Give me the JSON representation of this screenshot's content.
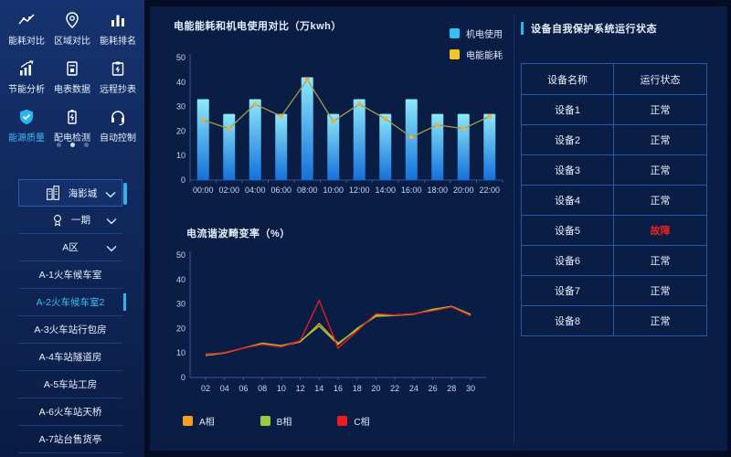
{
  "colors": {
    "accent_cyan": "#2ab5f0",
    "fault_red": "#e8231d",
    "bar_top": "#8de9fa",
    "bar_bottom": "#1470da",
    "axis_line": "#31549b",
    "axis_text": "#c6d8f2"
  },
  "sidebar": {
    "menu": [
      {
        "label": "能耗对比",
        "icon": "trend-icon",
        "active": false
      },
      {
        "label": "区域对比",
        "icon": "location-icon",
        "active": false
      },
      {
        "label": "能耗排名",
        "icon": "ranking-icon",
        "active": false
      },
      {
        "label": "节能分析",
        "icon": "analysis-icon",
        "active": false
      },
      {
        "label": "电表数据",
        "icon": "meter-icon",
        "active": false
      },
      {
        "label": "远程抄表",
        "icon": "clipboard-icon",
        "active": false
      },
      {
        "label": "能源质量",
        "icon": "shield-icon",
        "active": true
      },
      {
        "label": "配电检测",
        "icon": "battery-icon",
        "active": false
      },
      {
        "label": "自动控制",
        "icon": "control-icon",
        "active": false
      }
    ],
    "pagination": {
      "count": 3,
      "active": 1
    },
    "tree": [
      {
        "label": "海影城",
        "icon": "building-icon",
        "chevron": true,
        "boxed": true,
        "selected": false
      },
      {
        "label": "一期",
        "icon": "badge-icon",
        "chevron": true,
        "boxed": false,
        "selected": false
      },
      {
        "label": "A区",
        "chevron": true,
        "boxed": false,
        "selected": false
      },
      {
        "label": "A-1火车候车室",
        "boxed": false,
        "selected": false
      },
      {
        "label": "A-2火车候车室2",
        "boxed": false,
        "selected": true
      },
      {
        "label": "A-3火车站行包房",
        "boxed": false,
        "selected": false
      },
      {
        "label": "A-4车站隧道房",
        "boxed": false,
        "selected": false
      },
      {
        "label": "A-5车站工房",
        "boxed": false,
        "selected": false
      },
      {
        "label": "A-6火车站天桥",
        "boxed": false,
        "selected": false
      },
      {
        "label": "A-7站台售货亭",
        "boxed": false,
        "selected": false
      }
    ]
  },
  "chart_data": [
    {
      "type": "bar",
      "title": "电能能耗和机电使用对比（万kwh）",
      "categories": [
        "00:00",
        "02:00",
        "04:00",
        "06:00",
        "08:00",
        "10:00",
        "12:00",
        "14:00",
        "16:00",
        "18:00",
        "20:00",
        "22:00"
      ],
      "series": [
        {
          "name": "机电使用",
          "render": "bar",
          "legend_color": "#2fc2f5",
          "values": [
            33,
            27,
            33,
            27,
            42,
            27,
            33,
            27,
            33,
            27,
            27,
            27
          ]
        },
        {
          "name": "电能能耗",
          "render": "line",
          "color": "#a49d4b",
          "dot_color": "#f4ad3d",
          "legend_color": "#f3c427",
          "values": [
            24.5,
            21,
            31,
            26,
            41,
            24,
            31,
            25,
            17.5,
            22.5,
            21,
            26
          ]
        }
      ],
      "ylim": [
        0,
        50
      ],
      "yticks": [
        0,
        10,
        20,
        30,
        40,
        50
      ],
      "grid": false,
      "legend_position": "top-right"
    },
    {
      "type": "line",
      "title": "电流谐波畸变率（%）",
      "categories": [
        "02",
        "04",
        "06",
        "08",
        "10",
        "12",
        "14",
        "16",
        "18",
        "20",
        "22",
        "24",
        "26",
        "28",
        "30"
      ],
      "series": [
        {
          "name": "A相",
          "color": "#f5a020",
          "legend_color": "#f5a020",
          "values": [
            9.5,
            10,
            12,
            13.8,
            12.8,
            14.5,
            22,
            14,
            19.5,
            25.5,
            25.5,
            26,
            27.5,
            29,
            25.5
          ]
        },
        {
          "name": "B相",
          "color": "#96cc3e",
          "legend_color": "#96cc3e",
          "values": [
            9,
            10,
            12,
            14,
            13,
            14.8,
            21,
            13.5,
            20,
            25,
            25.3,
            25.8,
            27.8,
            29,
            25.8
          ]
        },
        {
          "name": "C相",
          "color": "#ee1c1c",
          "legend_color": "#ee1c1c",
          "values": [
            9.3,
            10.2,
            12,
            13.5,
            12.5,
            15,
            31.5,
            12,
            19,
            26,
            25.5,
            26,
            27.2,
            28.8,
            25.2
          ]
        }
      ],
      "ylim": [
        0,
        50
      ],
      "yticks": [
        0,
        10,
        20,
        30,
        40,
        50
      ],
      "grid": false,
      "legend_position": "bottom"
    }
  ],
  "right_panel": {
    "title": "设备自我保护系统运行状态",
    "table": {
      "headers": [
        "设备名称",
        "运行状态"
      ],
      "rows": [
        {
          "name": "设备1",
          "status": "正常",
          "fault": false
        },
        {
          "name": "设备2",
          "status": "正常",
          "fault": false
        },
        {
          "name": "设备3",
          "status": "正常",
          "fault": false
        },
        {
          "name": "设备4",
          "status": "正常",
          "fault": false
        },
        {
          "name": "设备5",
          "status": "故障",
          "fault": true
        },
        {
          "name": "设备6",
          "status": "正常",
          "fault": false
        },
        {
          "name": "设备7",
          "status": "正常",
          "fault": false
        },
        {
          "name": "设备8",
          "status": "正常",
          "fault": false
        }
      ]
    }
  }
}
